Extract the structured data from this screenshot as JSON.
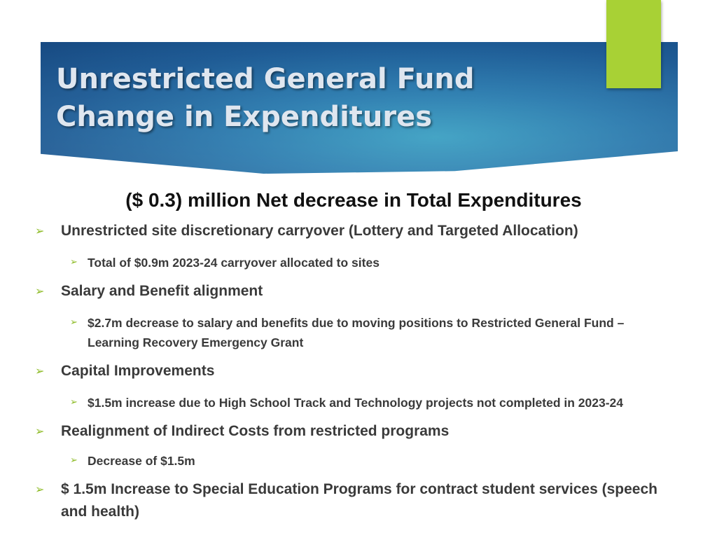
{
  "slide": {
    "title_line1": "Unrestricted General Fund",
    "title_line2": "Change in Expenditures",
    "subtitle": "($ 0.3) million Net decrease in Total Expenditures",
    "bullet_glyph": "➢",
    "accent_color": "#a8d135",
    "header_color": "#1d5a94"
  },
  "bullets": [
    {
      "level": 1,
      "text": "Unrestricted site discretionary carryover (Lottery and Targeted Allocation)"
    },
    {
      "level": 2,
      "text": "Total of $0.9m 2023-24 carryover allocated to sites"
    },
    {
      "level": 1,
      "text": "Salary and Benefit alignment"
    },
    {
      "level": 2,
      "text": "$2.7m decrease to salary and benefits due to moving positions to Restricted General Fund – Learning Recovery Emergency Grant"
    },
    {
      "level": 1,
      "text": "Capital Improvements"
    },
    {
      "level": 2,
      "text": "$1.5m increase due to High School Track and Technology projects not completed in 2023-24"
    },
    {
      "level": 1,
      "text": "Realignment of Indirect Costs from restricted programs"
    },
    {
      "level": 2,
      "text": "Decrease of $1.5m"
    },
    {
      "level": 1,
      "text": "$ 1.5m Increase to Special Education Programs for contract student services (speech and health)"
    }
  ]
}
